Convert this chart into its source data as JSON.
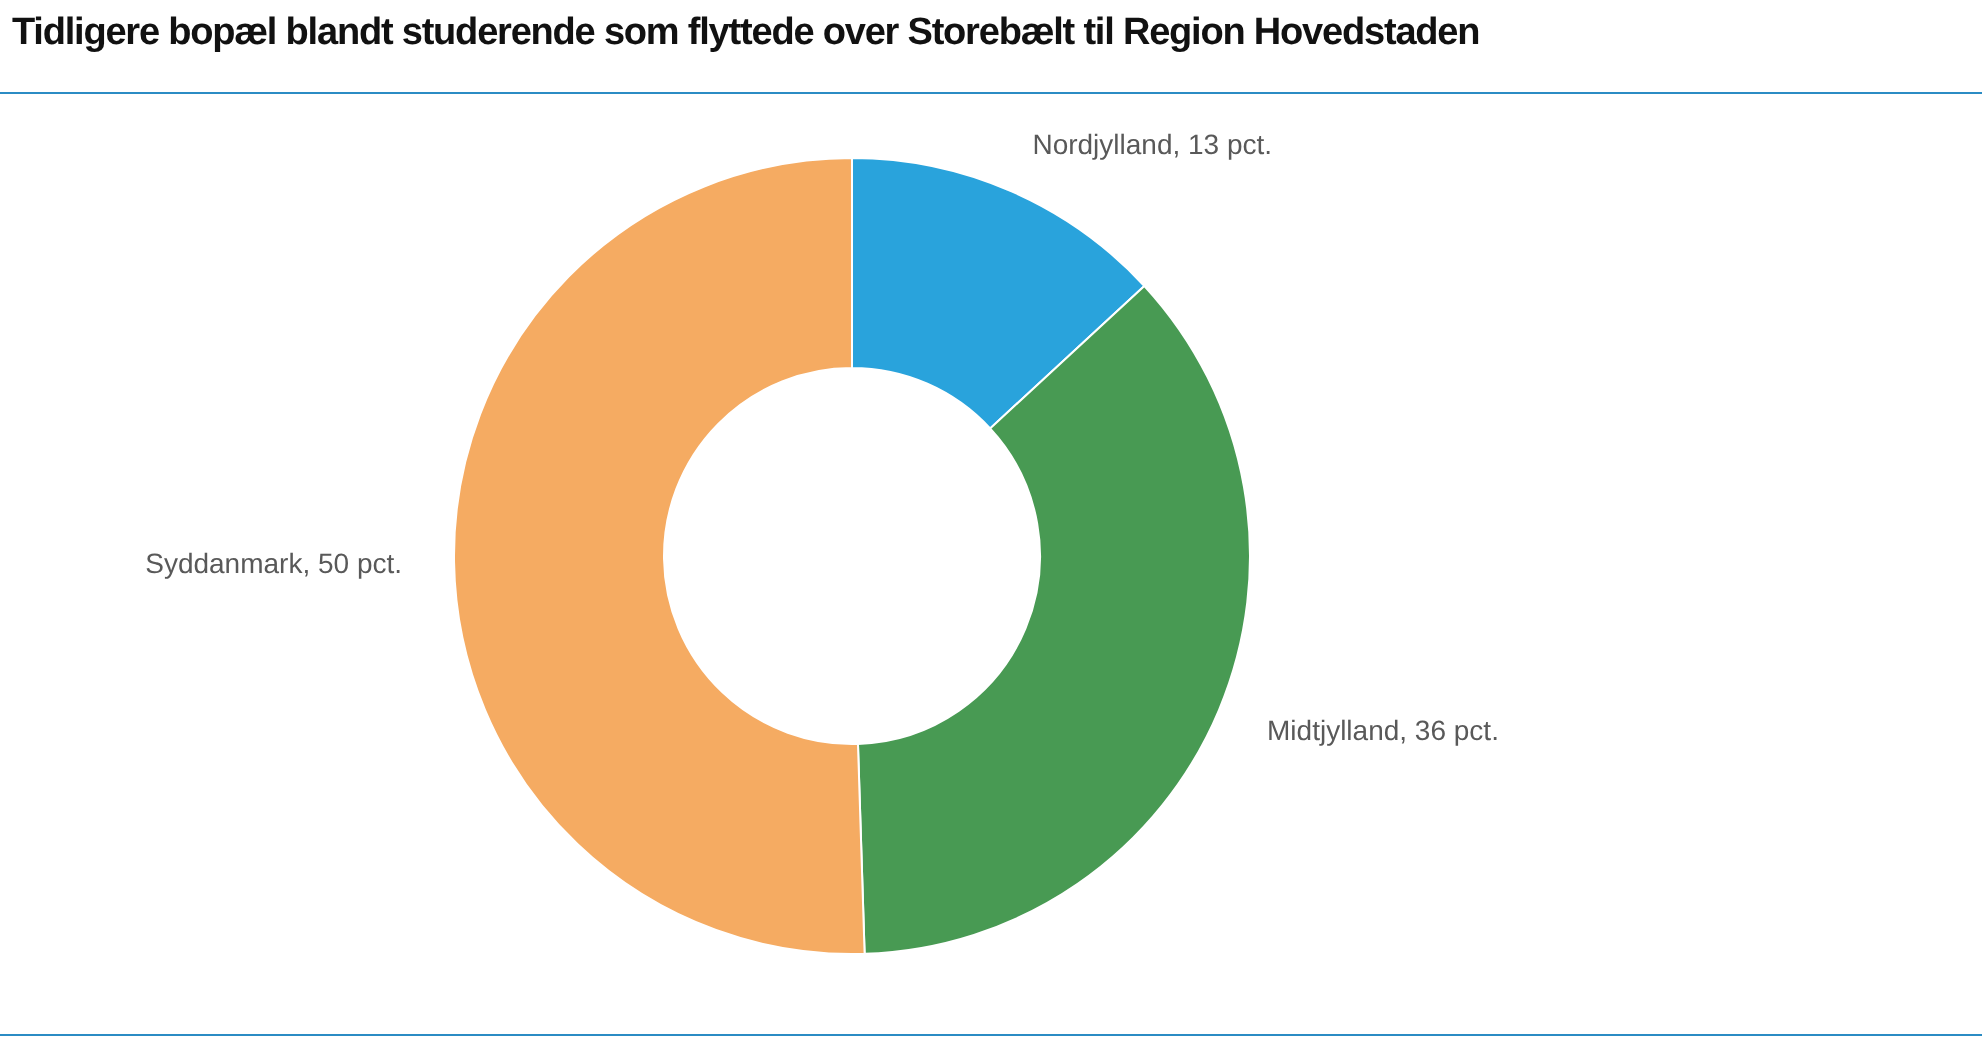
{
  "chart_data": {
    "type": "donut",
    "title": "Tidligere bopæl blandt studerende som flyttede over Storebælt til Region Hovedstaden",
    "categories": [
      "Nordjylland",
      "Midtjylland",
      "Syddanmark"
    ],
    "values": [
      13,
      36,
      50
    ],
    "colors": [
      "#29a3dc",
      "#489a53",
      "#f5ab62"
    ],
    "value_labels": [
      "13 pct.",
      "36 pct.",
      "50 pct."
    ]
  }
}
